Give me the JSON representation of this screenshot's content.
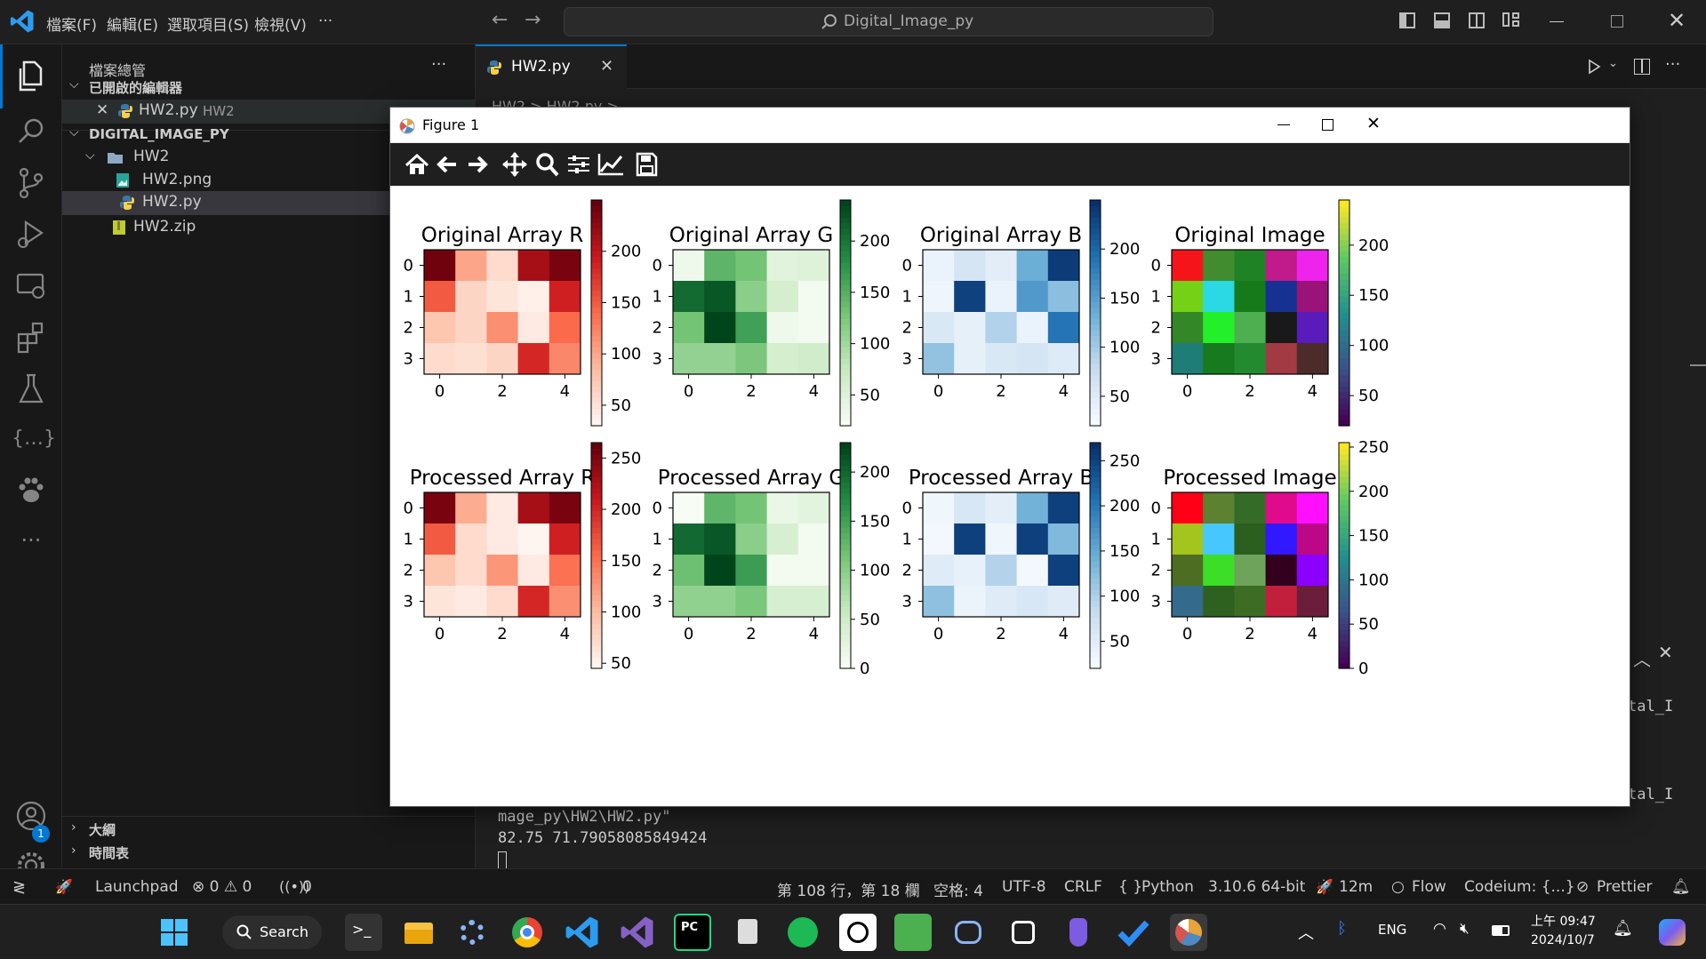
{
  "titlebar": {
    "menus": [
      "檔案(F)",
      "編輯(E)",
      "選取項目(S)",
      "檢視(V)",
      "···"
    ],
    "search_text": "Digital_Image_py"
  },
  "sidebar": {
    "header": "檔案總管",
    "more": "···",
    "open_editors_title": "已開啟的編輯器",
    "open_editor_file": "HW2.py",
    "open_editor_folder": "HW2",
    "workspace_title": "DIGITAL_IMAGE_PY",
    "tree": [
      {
        "name": "HW2",
        "type": "folder"
      },
      {
        "name": "HW2.png",
        "type": "image"
      },
      {
        "name": "HW2.py",
        "type": "python"
      },
      {
        "name": "HW2.zip",
        "type": "zip"
      }
    ],
    "outline": "大綱",
    "timeline": "時間表"
  },
  "editor": {
    "tab_label": "HW2.py",
    "breadcrumb": "HW2 > HW2.py >"
  },
  "terminal": {
    "line1": "mage_py\\HW2\\HW2.py\"",
    "line2": "82.75 71.79058085849424",
    "right1": "tal_I",
    "right2": "tal_I"
  },
  "figure": {
    "title": "Figure 1",
    "toolbar": [
      "home-icon",
      "back-icon",
      "forward-icon",
      "pan-icon",
      "zoom-icon",
      "configure-icon",
      "axes-icon",
      "save-icon"
    ]
  },
  "chart_data": [
    {
      "type": "heatmap",
      "title": "Original Array R",
      "cmap": "Reds",
      "colorbar_ticks": [
        200,
        150,
        100,
        50
      ],
      "vmin": 30,
      "vmax": 250,
      "values": [
        [
          245,
          100,
          55,
          215,
          240
        ],
        [
          150,
          60,
          45,
          35,
          190
        ],
        [
          75,
          60,
          115,
          40,
          140
        ],
        [
          55,
          50,
          60,
          185,
          120
        ]
      ],
      "xticks": [
        0,
        2,
        4
      ],
      "yticks": [
        0,
        1,
        2,
        3
      ]
    },
    {
      "type": "heatmap",
      "title": "Original Array G",
      "cmap": "Greens",
      "colorbar_ticks": [
        200,
        150,
        100,
        50
      ],
      "vmin": 20,
      "vmax": 240,
      "values": [
        [
          30,
          145,
          130,
          45,
          50
        ],
        [
          210,
          225,
          115,
          60,
          25
        ],
        [
          130,
          240,
          165,
          30,
          25
        ],
        [
          110,
          110,
          125,
          60,
          65
        ]
      ],
      "xticks": [
        0,
        2,
        4
      ],
      "yticks": [
        0,
        1,
        2,
        3
      ]
    },
    {
      "type": "heatmap",
      "title": "Original Array B",
      "cmap": "Blues",
      "colorbar_ticks": [
        200,
        150,
        100,
        50
      ],
      "vmin": 20,
      "vmax": 250,
      "values": [
        [
          35,
          60,
          45,
          135,
          240
        ],
        [
          30,
          235,
          35,
          155,
          115
        ],
        [
          55,
          40,
          90,
          35,
          190
        ],
        [
          110,
          40,
          55,
          60,
          50
        ]
      ],
      "xticks": [
        0,
        2,
        4
      ],
      "yticks": [
        0,
        1,
        2,
        3
      ]
    },
    {
      "type": "heatmap",
      "title": "Original Image",
      "cmap": "viridis",
      "colorbar_ticks": [
        200,
        150,
        100,
        50
      ],
      "rgb": true,
      "colors": [
        [
          "#f5141a",
          "#408c2e",
          "#1f8326",
          "#c01a8b",
          "#ee24ec"
        ],
        [
          "#74d116",
          "#2ad9e4",
          "#177a1a",
          "#173193",
          "#9a1378"
        ],
        [
          "#338726",
          "#23f02a",
          "#4daf4f",
          "#191919",
          "#5a1bbb"
        ],
        [
          "#1f7d78",
          "#187a1e",
          "#248a2f",
          "#a23a44",
          "#4b2c2b"
        ]
      ],
      "xticks": [
        0,
        2,
        4
      ],
      "yticks": [
        0,
        1,
        2,
        3
      ]
    },
    {
      "type": "heatmap",
      "title": "Processed Array R",
      "cmap": "Reds",
      "colorbar_ticks": [
        250,
        200,
        150,
        100,
        50
      ],
      "vmin": 45,
      "vmax": 265,
      "values": [
        [
          255,
          110,
          55,
          230,
          255
        ],
        [
          165,
          70,
          55,
          45,
          205
        ],
        [
          90,
          70,
          125,
          55,
          150
        ],
        [
          60,
          55,
          70,
          200,
          130
        ]
      ],
      "xticks": [
        0,
        2,
        4
      ],
      "yticks": [
        0,
        1,
        2,
        3
      ]
    },
    {
      "type": "heatmap",
      "title": "Processed Array G",
      "cmap": "Greens",
      "colorbar_ticks": [
        200,
        150,
        100,
        50,
        0
      ],
      "vmin": 0,
      "vmax": 230,
      "values": [
        [
          0,
          130,
          115,
          15,
          25
        ],
        [
          200,
          215,
          100,
          40,
          5
        ],
        [
          120,
          230,
          155,
          5,
          5
        ],
        [
          95,
          95,
          110,
          40,
          40
        ]
      ],
      "xticks": [
        0,
        2,
        4
      ],
      "yticks": [
        0,
        1,
        2,
        3
      ]
    },
    {
      "type": "heatmap",
      "title": "Processed Array B",
      "cmap": "Blues",
      "colorbar_ticks": [
        250,
        200,
        150,
        100,
        50
      ],
      "vmin": 20,
      "vmax": 270,
      "values": [
        [
          30,
          60,
          45,
          140,
          255
        ],
        [
          25,
          255,
          30,
          255,
          130
        ],
        [
          50,
          40,
          95,
          25,
          255
        ],
        [
          120,
          35,
          50,
          60,
          50
        ]
      ],
      "xticks": [
        0,
        2,
        4
      ],
      "yticks": [
        0,
        1,
        2,
        3
      ]
    },
    {
      "type": "heatmap",
      "title": "Processed Image",
      "cmap": "viridis",
      "colorbar_ticks": [
        250,
        200,
        150,
        100,
        50,
        0
      ],
      "rgb": true,
      "colors": [
        [
          "#ff0016",
          "#5c8130",
          "#346b27",
          "#df0b8c",
          "#ff0fff"
        ],
        [
          "#a4c41e",
          "#46c8fe",
          "#2b5f1f",
          "#3218fe",
          "#bc0887"
        ],
        [
          "#4d6d23",
          "#3cde28",
          "#6da35a",
          "#32001e",
          "#8b00ff"
        ],
        [
          "#346a8c",
          "#2e6020",
          "#3d6d24",
          "#c21f3d",
          "#6b1d3c"
        ]
      ],
      "xticks": [
        0,
        2,
        4
      ],
      "yticks": [
        0,
        1,
        2,
        3
      ]
    }
  ],
  "statusbar": {
    "launchpad": "Launchpad",
    "problems": "⊗ 0 ⚠ 0",
    "ports": "0",
    "position": "第 108 行，第 18 欄",
    "spaces": "空格: 4",
    "encoding": "UTF-8",
    "eol": "CRLF",
    "language": "Python",
    "interpreter": "3.10.6 64-bit",
    "timer": "12m",
    "flow": "Flow",
    "codeium": "Codeium: {...}",
    "prettier": "Prettier"
  },
  "taskbar": {
    "search": "Search",
    "lang": "ENG",
    "time": "上午 09:47",
    "date": "2024/10/7"
  },
  "accounts_badge": "1",
  "colors": {
    "accent": "#0078d4",
    "bg": "#1f1f1f",
    "sidebar": "#181818"
  }
}
